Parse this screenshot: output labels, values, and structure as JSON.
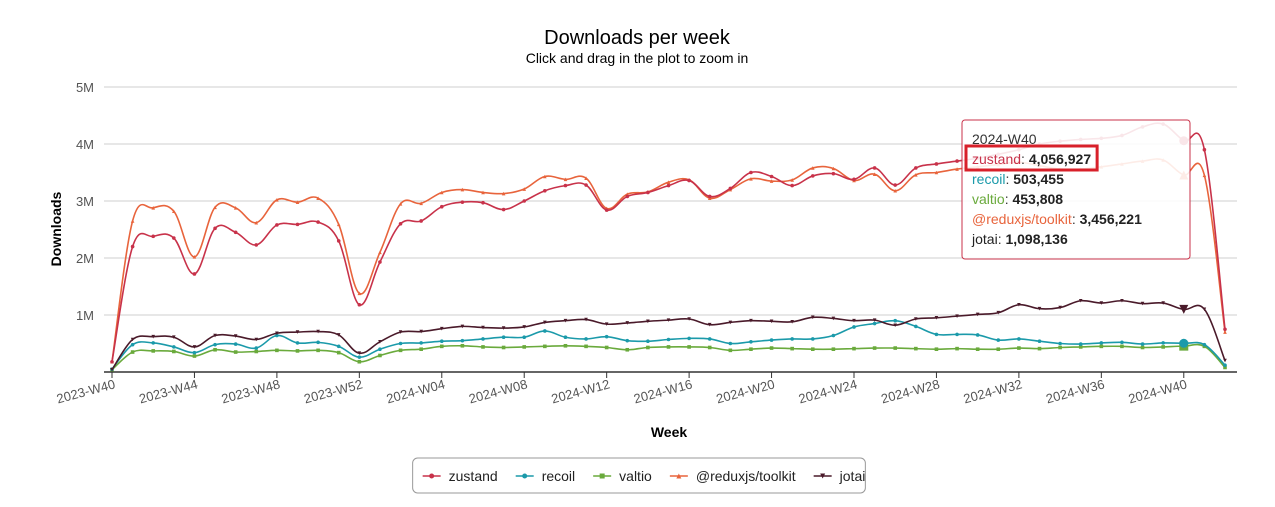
{
  "chart_data": {
    "type": "line",
    "title": "Downloads per week",
    "subtitle": "Click and drag in the plot to zoom in",
    "xlabel": "Week",
    "ylabel": "Downloads",
    "ylim": [
      0,
      5000000
    ],
    "y_ticks": [
      "",
      "1M",
      "2M",
      "3M",
      "4M",
      "5M"
    ],
    "y_tick_values": [
      0,
      1000000,
      2000000,
      3000000,
      4000000,
      5000000
    ],
    "x_tick_labels": [
      "2023-W40",
      "2023-W44",
      "2023-W48",
      "2023-W52",
      "2024-W04",
      "2024-W08",
      "2024-W12",
      "2024-W16",
      "2024-W20",
      "2024-W24",
      "2024-W28",
      "2024-W32",
      "2024-W36",
      "2024-W40"
    ],
    "grid": true,
    "legend_position": "bottom-center",
    "x": [
      "2023-W40",
      "2023-W41",
      "2023-W42",
      "2023-W43",
      "2023-W44",
      "2023-W45",
      "2023-W46",
      "2023-W47",
      "2023-W48",
      "2023-W49",
      "2023-W50",
      "2023-W51",
      "2023-W52",
      "2024-W01",
      "2024-W02",
      "2024-W03",
      "2024-W04",
      "2024-W05",
      "2024-W06",
      "2024-W07",
      "2024-W08",
      "2024-W09",
      "2024-W10",
      "2024-W11",
      "2024-W12",
      "2024-W13",
      "2024-W14",
      "2024-W15",
      "2024-W16",
      "2024-W17",
      "2024-W18",
      "2024-W19",
      "2024-W20",
      "2024-W21",
      "2024-W22",
      "2024-W23",
      "2024-W24",
      "2024-W25",
      "2024-W26",
      "2024-W27",
      "2024-W28",
      "2024-W29",
      "2024-W30",
      "2024-W31",
      "2024-W32",
      "2024-W33",
      "2024-W34",
      "2024-W35",
      "2024-W36",
      "2024-W37",
      "2024-W38",
      "2024-W39",
      "2024-W40",
      "2024-W41",
      "2024-W42"
    ],
    "series": [
      {
        "name": "zustand",
        "color": "#c8324a",
        "marker": "circle",
        "values": [
          180000,
          2200000,
          2380000,
          2350000,
          1720000,
          2520000,
          2450000,
          2230000,
          2580000,
          2590000,
          2630000,
          2300000,
          1180000,
          1930000,
          2600000,
          2650000,
          2900000,
          2980000,
          2970000,
          2850000,
          3000000,
          3180000,
          3270000,
          3280000,
          2840000,
          3080000,
          3150000,
          3270000,
          3360000,
          3080000,
          3220000,
          3500000,
          3430000,
          3270000,
          3440000,
          3480000,
          3380000,
          3580000,
          3280000,
          3580000,
          3650000,
          3700000,
          3750000,
          3820000,
          3900000,
          4000000,
          4050000,
          4080000,
          4100000,
          4150000,
          4300000,
          4350000,
          4056927,
          3900000,
          750000
        ]
      },
      {
        "name": "recoil",
        "color": "#1b9aaa",
        "marker": "circle",
        "values": [
          50000,
          480000,
          510000,
          440000,
          340000,
          480000,
          490000,
          420000,
          640000,
          510000,
          520000,
          450000,
          260000,
          400000,
          500000,
          510000,
          540000,
          550000,
          580000,
          610000,
          610000,
          720000,
          610000,
          580000,
          620000,
          550000,
          540000,
          570000,
          590000,
          580000,
          500000,
          530000,
          560000,
          580000,
          580000,
          640000,
          790000,
          850000,
          900000,
          800000,
          660000,
          660000,
          650000,
          560000,
          580000,
          540000,
          500000,
          490000,
          510000,
          520000,
          490000,
          510000,
          503455,
          480000,
          120000
        ]
      },
      {
        "name": "valtio",
        "color": "#6aaa3c",
        "marker": "square",
        "values": [
          40000,
          350000,
          370000,
          360000,
          280000,
          390000,
          350000,
          360000,
          380000,
          370000,
          380000,
          340000,
          180000,
          290000,
          380000,
          400000,
          450000,
          460000,
          440000,
          430000,
          440000,
          450000,
          460000,
          450000,
          430000,
          390000,
          430000,
          440000,
          440000,
          430000,
          380000,
          400000,
          420000,
          410000,
          400000,
          400000,
          410000,
          420000,
          420000,
          410000,
          400000,
          410000,
          400000,
          400000,
          420000,
          410000,
          430000,
          440000,
          450000,
          450000,
          430000,
          440000,
          453808,
          450000,
          80000
        ]
      },
      {
        "name": "@reduxjs/toolkit",
        "color": "#e8643c",
        "marker": "triangle",
        "values": [
          180000,
          2650000,
          2880000,
          2820000,
          2020000,
          2890000,
          2880000,
          2620000,
          3020000,
          2980000,
          3050000,
          2590000,
          1380000,
          2100000,
          2950000,
          2960000,
          3150000,
          3200000,
          3150000,
          3130000,
          3210000,
          3430000,
          3380000,
          3400000,
          2870000,
          3120000,
          3160000,
          3330000,
          3370000,
          3050000,
          3200000,
          3390000,
          3350000,
          3370000,
          3580000,
          3570000,
          3360000,
          3470000,
          3180000,
          3460000,
          3500000,
          3560000,
          3600000,
          3640000,
          3680000,
          3620000,
          3560000,
          3560000,
          3600000,
          3650000,
          3700000,
          3720000,
          3456221,
          3450000,
          700000
        ]
      },
      {
        "name": "jotai",
        "color": "#4a1a2a",
        "marker": "triangle-down",
        "values": [
          40000,
          570000,
          620000,
          610000,
          440000,
          640000,
          630000,
          570000,
          680000,
          700000,
          710000,
          650000,
          330000,
          530000,
          700000,
          710000,
          760000,
          800000,
          780000,
          770000,
          790000,
          870000,
          900000,
          920000,
          840000,
          860000,
          890000,
          910000,
          930000,
          830000,
          870000,
          900000,
          890000,
          880000,
          960000,
          940000,
          900000,
          910000,
          820000,
          930000,
          950000,
          980000,
          1010000,
          1040000,
          1180000,
          1110000,
          1130000,
          1250000,
          1210000,
          1250000,
          1200000,
          1210000,
          1098136,
          1100000,
          200000
        ]
      }
    ]
  },
  "tooltip": {
    "week": "2024-W40",
    "rows": [
      {
        "name": "zustand",
        "sep": ": ",
        "value": "4,056,927",
        "color": "#c8324a",
        "highlighted": true
      },
      {
        "name": "recoil",
        "sep": ": ",
        "value": "503,455",
        "color": "#1b9aaa",
        "highlighted": false
      },
      {
        "name": "valtio",
        "sep": ": ",
        "value": "453,808",
        "color": "#6aaa3c",
        "highlighted": false
      },
      {
        "name": "@reduxjs/toolkit",
        "sep": ": ",
        "value": "3,456,221",
        "color": "#e8643c",
        "highlighted": false
      },
      {
        "name": "jotai",
        "sep": ": ",
        "value": "1,098,136",
        "color": "#222222",
        "highlighted": false
      }
    ],
    "border_color": "#c8324a",
    "highlight_color": "#d8202a"
  }
}
